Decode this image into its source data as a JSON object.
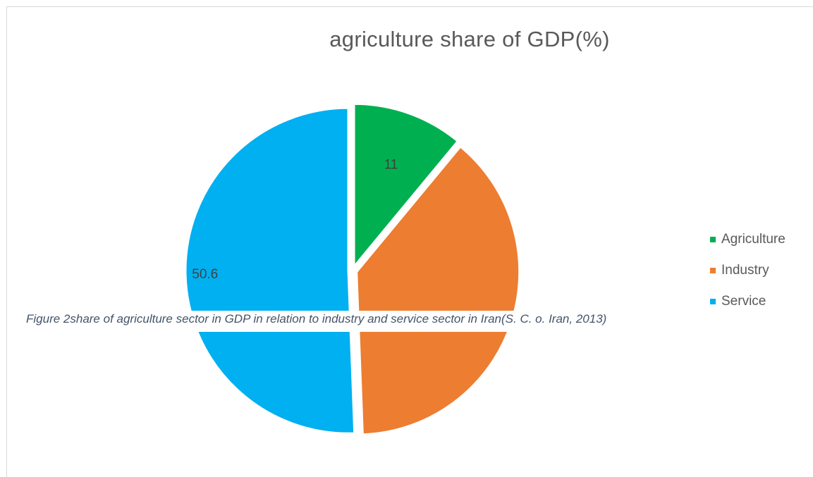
{
  "chart_data": {
    "type": "pie",
    "title": "agriculture share of GDP(%)",
    "categories": [
      "Agriculture",
      "Industry",
      "Service"
    ],
    "values": [
      11,
      38.4,
      50.6
    ],
    "data_labels": [
      "11",
      "",
      "50.6"
    ],
    "colors": [
      "#00b050",
      "#ed7d31",
      "#00b0f0"
    ],
    "legend": {
      "position": "right"
    }
  },
  "caption": "Figure 2share of agriculture sector in GDP in relation to industry and service sector in Iran(S. C. o. Iran, 2013)"
}
